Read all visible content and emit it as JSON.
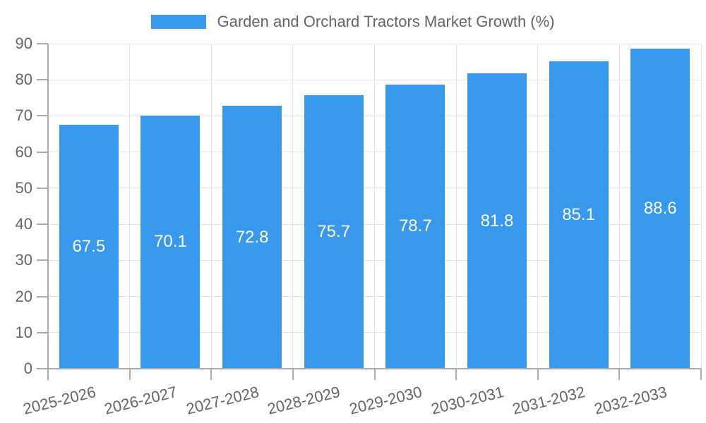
{
  "legend": {
    "label": "Garden and Orchard Tractors Market Growth (%)"
  },
  "chart_data": {
    "type": "bar",
    "title": "Garden and Orchard Tractors Market Growth (%)",
    "categories": [
      "2025-2026",
      "2026-2027",
      "2027-2028",
      "2028-2029",
      "2029-2030",
      "2030-2031",
      "2031-2032",
      "2032-2033"
    ],
    "values": [
      67.5,
      70.1,
      72.8,
      75.7,
      78.7,
      81.8,
      85.1,
      88.6
    ],
    "xlabel": "",
    "ylabel": "",
    "ylim": [
      0,
      90
    ],
    "ytick_step": 10,
    "ytick_labels": [
      "0",
      "10",
      "20",
      "30",
      "40",
      "50",
      "60",
      "70",
      "80",
      "90"
    ],
    "grid": true,
    "legend_position": "top",
    "value_labels_inside_bars": true,
    "x_label_rotation_deg": -14,
    "colors": {
      "bar": "#3898EC",
      "value_label": "#ffffff",
      "axis_text": "#666666",
      "gridline": "#e3e3e3",
      "axis_line": "#ababab"
    }
  }
}
